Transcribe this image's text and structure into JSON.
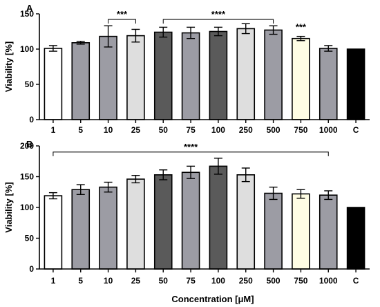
{
  "figure": {
    "xlabel": "Concentration [μM]"
  },
  "colors": {
    "white": "#ffffff",
    "light_gray": "#dedede",
    "mid_gray": "#9c9ca4",
    "dark_gray": "#5a5a5a",
    "pale_yellow": "#fffde4",
    "black": "#000000"
  },
  "chart_data": [
    {
      "type": "bar",
      "panel_label": "A",
      "ylabel": "Viability [%]",
      "ylim": [
        0,
        150
      ],
      "yticks": [
        0,
        50,
        100,
        150
      ],
      "categories": [
        "1",
        "5",
        "10",
        "25",
        "50",
        "75",
        "100",
        "250",
        "500",
        "750",
        "1000",
        "C"
      ],
      "values": [
        101,
        109,
        118,
        119,
        124,
        123,
        125,
        129,
        127,
        115,
        101,
        100
      ],
      "errors": [
        4,
        2,
        15,
        9,
        7,
        8,
        6,
        7,
        6,
        3,
        4,
        0
      ],
      "bar_colors": [
        "white",
        "mid_gray",
        "mid_gray",
        "light_gray",
        "dark_gray",
        "mid_gray",
        "dark_gray",
        "light_gray",
        "mid_gray",
        "pale_yellow",
        "mid_gray",
        "black"
      ],
      "significance": [
        {
          "label": "***",
          "from": "10",
          "to": "25",
          "level": 142
        },
        {
          "label": "****",
          "from": "50",
          "to": "500",
          "level": 142
        },
        {
          "label": "***",
          "from": "750",
          "to": "750",
          "level": 124
        }
      ]
    },
    {
      "type": "bar",
      "panel_label": "B",
      "ylabel": "Viability [%]",
      "ylim": [
        0,
        200
      ],
      "yticks": [
        0,
        50,
        100,
        150,
        200
      ],
      "categories": [
        "1",
        "5",
        "10",
        "25",
        "50",
        "75",
        "100",
        "250",
        "500",
        "750",
        "1000",
        "C"
      ],
      "values": [
        119,
        129,
        133,
        146,
        153,
        157,
        167,
        153,
        123,
        122,
        120,
        100
      ],
      "errors": [
        5,
        8,
        8,
        6,
        8,
        10,
        13,
        11,
        10,
        7,
        7,
        0
      ],
      "bar_colors": [
        "white",
        "mid_gray",
        "mid_gray",
        "light_gray",
        "dark_gray",
        "mid_gray",
        "dark_gray",
        "light_gray",
        "mid_gray",
        "pale_yellow",
        "mid_gray",
        "black"
      ],
      "significance": [
        {
          "label": "****",
          "from": "1",
          "to": "1000",
          "level": 190
        }
      ]
    }
  ]
}
